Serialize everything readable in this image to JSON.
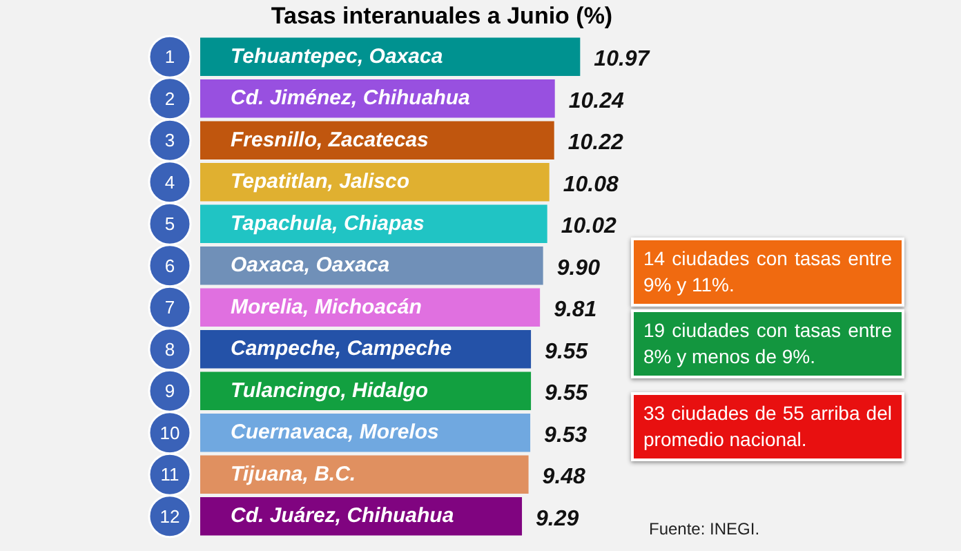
{
  "chart_data": {
    "type": "bar",
    "orientation": "horizontal",
    "title": "Tasas interanuales a Junio (%)",
    "categories": [
      "Tehuantepec, Oaxaca",
      "Cd. Jiménez, Chihuahua",
      "Fresnillo, Zacatecas",
      "Tepatitlan, Jalisco",
      "Tapachula, Chiapas",
      "Oaxaca, Oaxaca",
      "Morelia, Michoacán",
      "Campeche, Campeche",
      "Tulancingo, Hidalgo",
      "Cuernavaca, Morelos",
      "Tijuana, B.C.",
      "Cd. Juárez, Chihuahua"
    ],
    "values": [
      10.97,
      10.24,
      10.22,
      10.08,
      10.02,
      9.9,
      9.81,
      9.55,
      9.55,
      9.53,
      9.48,
      9.29
    ],
    "colors": [
      "#009290",
      "#9850e0",
      "#c0560e",
      "#e0b030",
      "#20c4c4",
      "#7090b8",
      "#e070e0",
      "#2452a8",
      "#12a040",
      "#70a8e0",
      "#e09060",
      "#800480"
    ],
    "value_labels": [
      "10.97",
      "10.24",
      "10.22",
      "10.08",
      "10.02",
      "9.90",
      "9.81",
      "9.55",
      "9.55",
      "9.53",
      "9.48",
      "9.29"
    ],
    "tick_labels": false,
    "legend": false,
    "annotations": [
      "1",
      "2",
      "3",
      "4",
      "5",
      "6",
      "7",
      "8",
      "9",
      "10",
      "11",
      "12",
      "14 ciudades con tasas entre 9% y 11%.",
      "19 ciudades con tasas entre 8% y menos de 9%.",
      "33 ciudades de 55 arriba del promedio nacional.",
      "Fuente: INEGI."
    ]
  }
}
